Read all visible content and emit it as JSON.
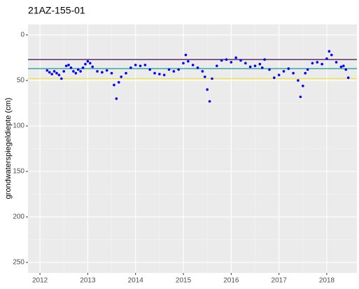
{
  "chart_data": {
    "type": "scatter",
    "title": "21AZ-155-01",
    "ylabel": "grondwaterspiegeldiepte (cm)",
    "x": [
      2012.15,
      2012.2,
      2012.25,
      2012.3,
      2012.35,
      2012.4,
      2012.45,
      2012.5,
      2012.55,
      2012.6,
      2012.65,
      2012.7,
      2012.75,
      2012.8,
      2012.85,
      2012.9,
      2012.95,
      2013.0,
      2013.05,
      2013.1,
      2013.2,
      2013.3,
      2013.4,
      2013.5,
      2013.55,
      2013.6,
      2013.65,
      2013.7,
      2013.8,
      2013.9,
      2014.0,
      2014.1,
      2014.2,
      2014.3,
      2014.4,
      2014.5,
      2014.6,
      2014.7,
      2014.8,
      2014.9,
      2015.0,
      2015.05,
      2015.1,
      2015.2,
      2015.3,
      2015.4,
      2015.45,
      2015.5,
      2015.55,
      2015.6,
      2015.7,
      2015.8,
      2015.9,
      2016.0,
      2016.1,
      2016.2,
      2016.3,
      2016.4,
      2016.5,
      2016.6,
      2016.65,
      2016.7,
      2016.8,
      2016.9,
      2017.0,
      2017.1,
      2017.2,
      2017.3,
      2017.4,
      2017.45,
      2017.5,
      2017.55,
      2017.6,
      2017.7,
      2017.8,
      2017.9,
      2018.0,
      2018.05,
      2018.1,
      2018.2,
      2018.3,
      2018.35,
      2018.4,
      2018.45
    ],
    "values": [
      39,
      41,
      43,
      40,
      42,
      44,
      48,
      40,
      34,
      33,
      36,
      40,
      42,
      38,
      40,
      36,
      32,
      29,
      31,
      35,
      40,
      41,
      39,
      42,
      55,
      70,
      52,
      46,
      42,
      36,
      33,
      34,
      33,
      38,
      42,
      43,
      44,
      38,
      40,
      38,
      31,
      22,
      29,
      33,
      36,
      40,
      46,
      60,
      73,
      48,
      34,
      28,
      27,
      30,
      25,
      28,
      31,
      35,
      34,
      32,
      36,
      27,
      38,
      47,
      44,
      40,
      37,
      42,
      50,
      68,
      56,
      42,
      38,
      31,
      30,
      32,
      26,
      18,
      22,
      30,
      35,
      34,
      38,
      47
    ],
    "color": "#0000ff",
    "hlines": [
      {
        "value": 27,
        "color": "#4d1e5c"
      },
      {
        "value": 37,
        "color": "#2aa198"
      },
      {
        "value": 48,
        "color": "#f5e13a"
      }
    ],
    "xlim": [
      2011.75,
      2018.63
    ],
    "xticks": [
      2012,
      2013,
      2014,
      2015,
      2016,
      2017,
      2018
    ],
    "ylim": [
      -11.5,
      261.5
    ],
    "y_reversed": true,
    "yticks": [
      0,
      50,
      100,
      150,
      200,
      250
    ],
    "grid": true
  }
}
